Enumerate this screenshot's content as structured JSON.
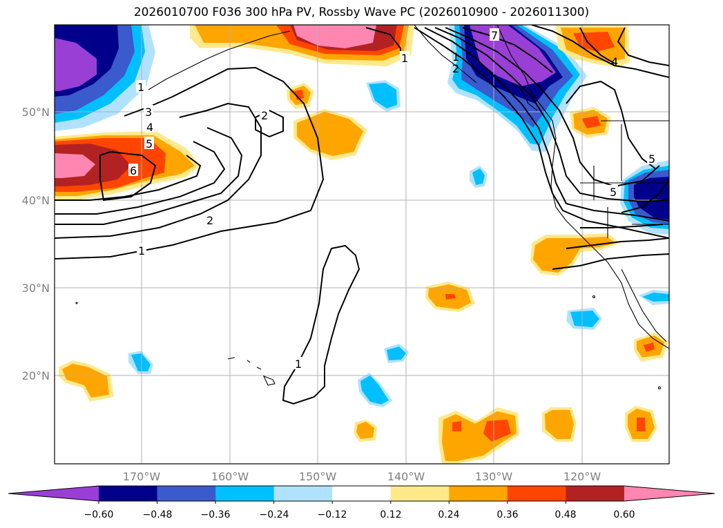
{
  "title": "2026010700 F036 300 hPa PV, Rossby Wave PC (2026010900 - 2026011300)",
  "lat_labels": [
    "50°N",
    "40°N",
    "30°N",
    "20°N"
  ],
  "lon_labels": [
    "170°W",
    "160°W",
    "150°W",
    "140°W",
    "130°W",
    "120°W"
  ],
  "colorbar": {
    "tick_labels": [
      "−0.60",
      "−0.48",
      "−0.36",
      "−0.24",
      "−0.12",
      "0.12",
      "0.24",
      "0.36",
      "0.48",
      "0.60"
    ],
    "colors": [
      "#9a3fd6",
      "#00008b",
      "#3a5acd",
      "#00bfff",
      "#b0e2ff",
      "#ffffff",
      "#ffe98a",
      "#ffa500",
      "#ff4500",
      "#b22222",
      "#ff86b0"
    ]
  },
  "contour_labels": [
    "1",
    "1",
    "2",
    "3",
    "4",
    "5",
    "6",
    "1",
    "2",
    "2",
    "1",
    "7",
    "1",
    "4",
    "5",
    "5"
  ],
  "colors": {
    "purple": "#9a3fd6",
    "navy": "#00008b",
    "royal": "#3a5acd",
    "sky": "#00bfff",
    "pale_blue": "#b0e2ff",
    "yellow": "#ffe98a",
    "orange": "#ffa500",
    "red_orange": "#ff4500",
    "firebrick": "#b22222",
    "pink": "#ff86b0"
  }
}
